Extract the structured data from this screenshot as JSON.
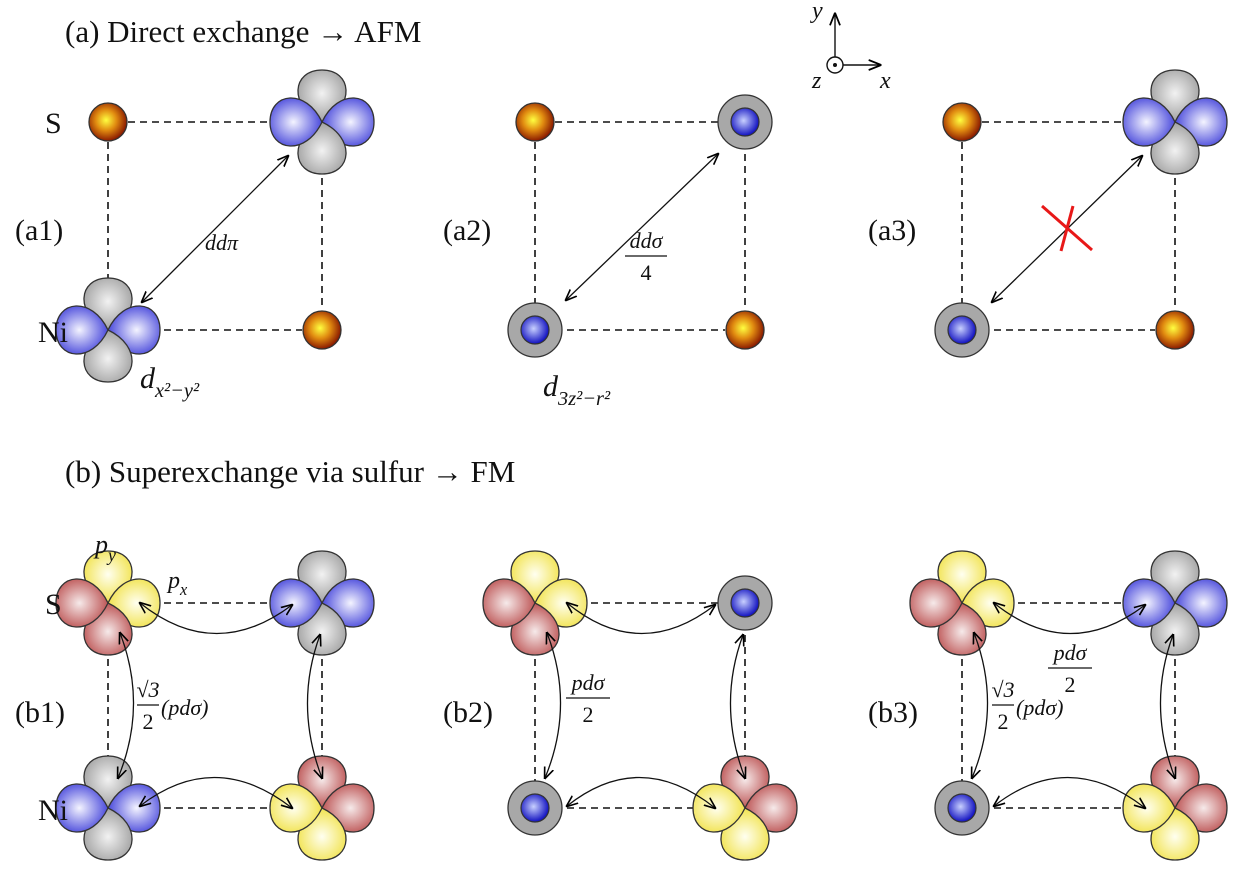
{
  "title_a": "(a) Direct exchange → AFM",
  "title_b": "(b) Superexchange via sulfur → FM",
  "atoms": {
    "sulfur": "S",
    "nickel": "Ni"
  },
  "axes": {
    "x": "x",
    "y": "y",
    "z": "z"
  },
  "orbitals": {
    "d_x2_y2": {
      "symbol": "d",
      "subscript": "x²−y²"
    },
    "d_3z2_r2": {
      "symbol": "d",
      "subscript": "3z²−r²"
    },
    "p_y": {
      "symbol": "p",
      "subscript": "y"
    },
    "p_x": {
      "symbol": "p",
      "subscript": "x"
    }
  },
  "panels_a": [
    {
      "label": "(a1)",
      "hopping": "ddπ"
    },
    {
      "label": "(a2)",
      "hopping": {
        "numerator": "ddσ",
        "denominator": "4"
      }
    },
    {
      "label": "(a3)"
    }
  ],
  "panels_b": [
    {
      "label": "(b1)",
      "hopping": {
        "numerator": "√3",
        "denominator": "2",
        "factor": "(pdσ)"
      }
    },
    {
      "label": "(b2)",
      "hopping": {
        "numerator": "pdσ",
        "denominator": "2"
      }
    },
    {
      "label": "(b3)",
      "hopping_top": {
        "numerator": "pdσ",
        "denominator": "2"
      },
      "hopping_left": {
        "numerator": "√3",
        "denominator": "2",
        "factor": "(pdσ)"
      }
    }
  ]
}
